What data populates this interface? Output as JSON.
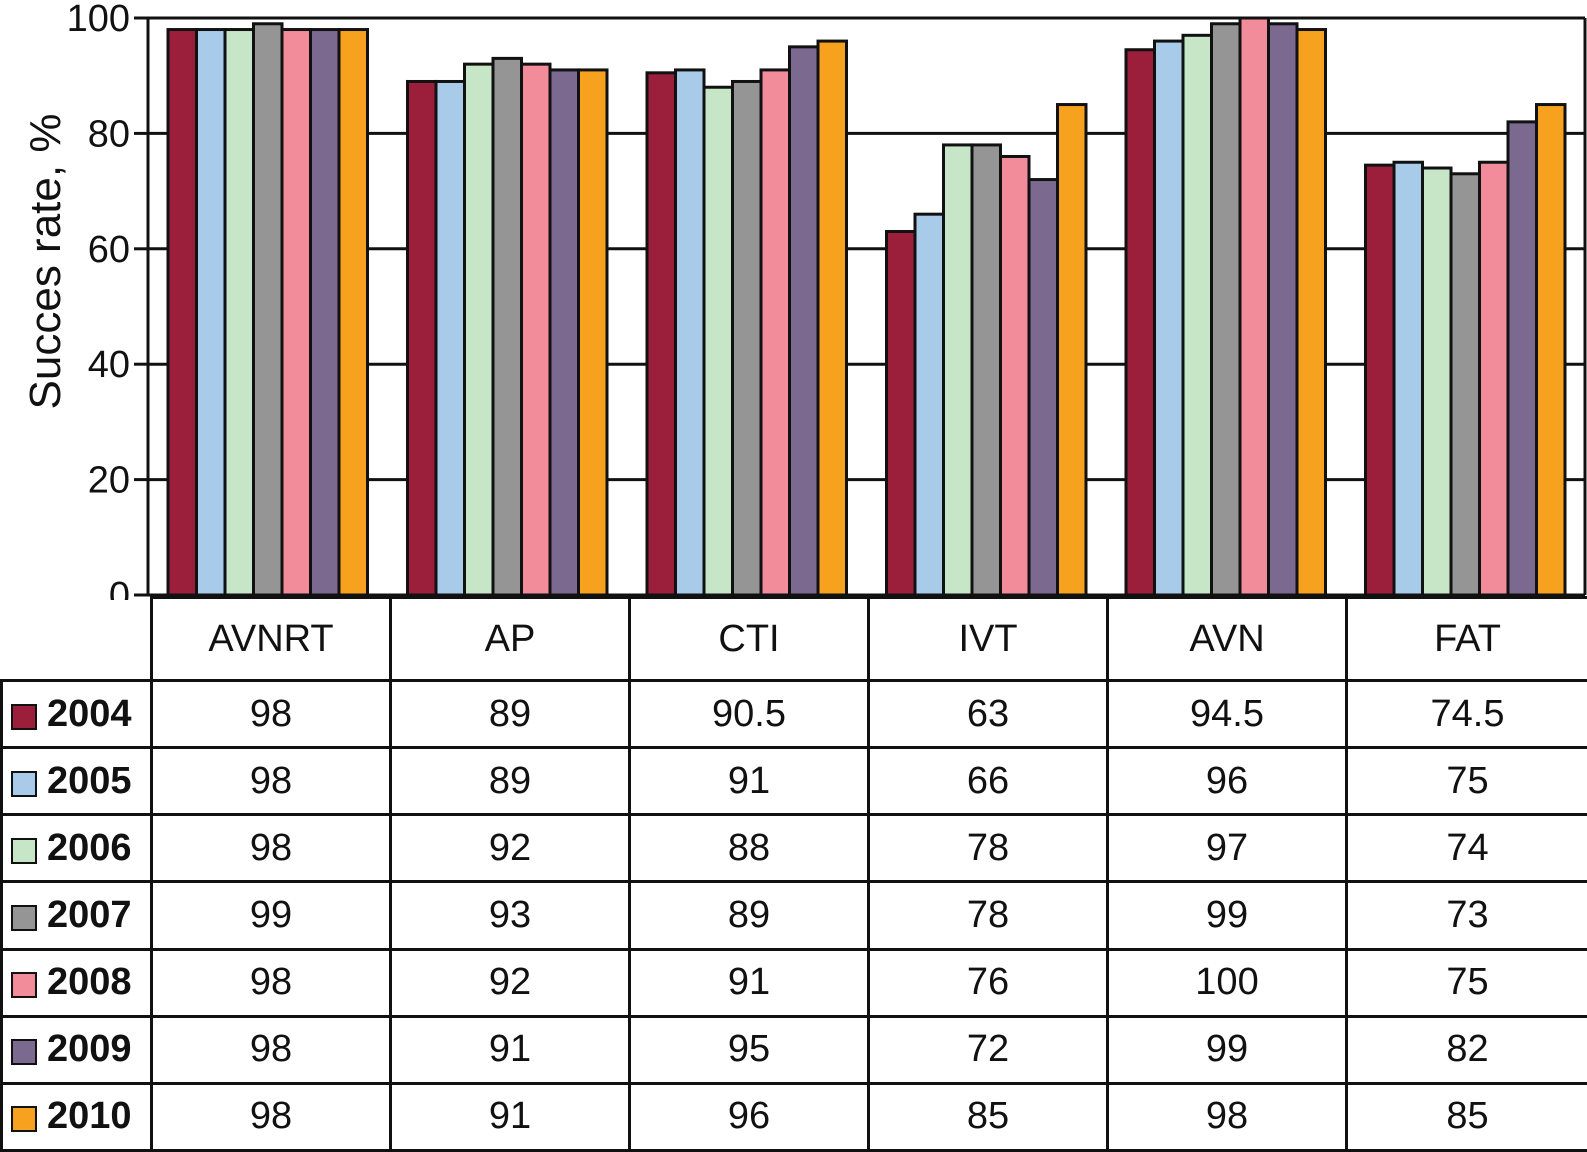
{
  "chart_data": {
    "type": "bar",
    "ylabel": "Succes rate, %",
    "xlabel": "",
    "ylim": [
      0,
      100
    ],
    "yticks": [
      0,
      20,
      40,
      60,
      80,
      100
    ],
    "grid": "horizontal",
    "categories": [
      "AVNRT",
      "AP",
      "CTI",
      "IVT",
      "AVN",
      "FAT"
    ],
    "series": [
      {
        "name": "2004",
        "color": "#9b1f3b",
        "values": [
          98,
          89,
          90.5,
          63,
          94.5,
          74.5
        ]
      },
      {
        "name": "2005",
        "color": "#a9cbea",
        "values": [
          98,
          89,
          91,
          66,
          96,
          75
        ]
      },
      {
        "name": "2006",
        "color": "#c7e6c7",
        "values": [
          98,
          92,
          88,
          78,
          97,
          74
        ]
      },
      {
        "name": "2007",
        "color": "#959595",
        "values": [
          99,
          93,
          89,
          78,
          99,
          73
        ]
      },
      {
        "name": "2008",
        "color": "#f28c9b",
        "values": [
          98,
          92,
          91,
          76,
          100,
          75
        ]
      },
      {
        "name": "2009",
        "color": "#7b6990",
        "values": [
          98,
          91,
          95,
          72,
          99,
          82
        ]
      },
      {
        "name": "2010",
        "color": "#f7a21e",
        "values": [
          98,
          91,
          96,
          85,
          98,
          85
        ]
      }
    ],
    "table_values": [
      [
        "98",
        "89",
        "90.5",
        "63",
        "94.5",
        "74.5"
      ],
      [
        "98",
        "89",
        "91",
        "66",
        "96",
        "75"
      ],
      [
        "98",
        "92",
        "88",
        "78",
        "97",
        "74"
      ],
      [
        "99",
        "93",
        "89",
        "78",
        "99",
        "73"
      ],
      [
        "98",
        "92",
        "91",
        "76",
        "100",
        "75"
      ],
      [
        "98",
        "91",
        "95",
        "72",
        "99",
        "82"
      ],
      [
        "98",
        "91",
        "96",
        "85",
        "98",
        "85"
      ]
    ]
  }
}
